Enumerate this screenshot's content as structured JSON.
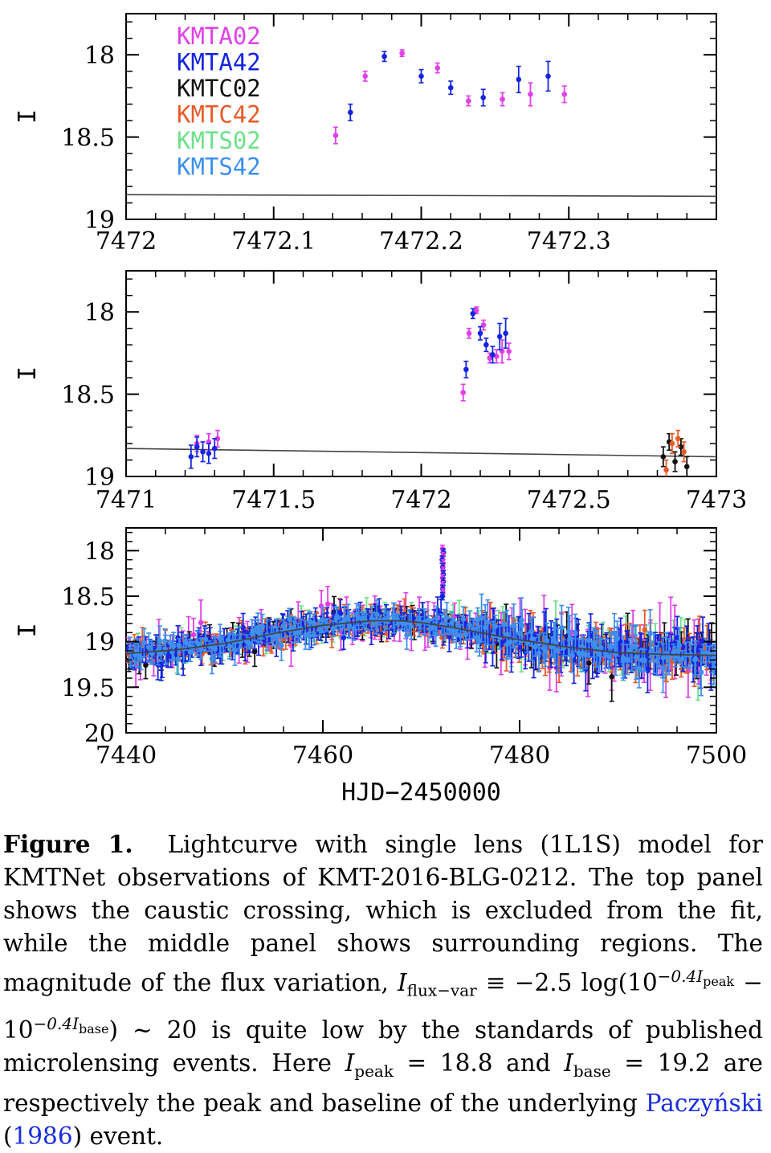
{
  "colors": {
    "KMTA02": "#e040e8",
    "KMTA42": "#1424e0",
    "KMTC02": "#111111",
    "KMTC42": "#e85a28",
    "KMTS02": "#6ee08a",
    "KMTS42": "#3d8ff0",
    "model": "#444444"
  },
  "chart_data": [
    {
      "type": "scatter",
      "panel": "top",
      "xlim": [
        7472,
        7472.4
      ],
      "ylim": [
        19,
        17.75
      ],
      "xticks": [
        "7472",
        "7472.1",
        "7472.2",
        "7472.3"
      ],
      "yticks": [
        "18",
        "18.5",
        "19"
      ],
      "ylabel": "I",
      "legend": [
        "KMTA02",
        "KMTA42",
        "KMTC02",
        "KMTC42",
        "KMTS02",
        "KMTS42"
      ],
      "legend_position": "top-left",
      "model_line": {
        "x": [
          7472.0,
          7472.4
        ],
        "y": [
          18.85,
          18.86
        ]
      },
      "series": [
        {
          "name": "KMTA02",
          "x": [
            7472.142,
            7472.162,
            7472.187,
            7472.211,
            7472.232,
            7472.255,
            7472.274,
            7472.297
          ],
          "y": [
            18.49,
            18.13,
            17.99,
            18.08,
            18.28,
            18.27,
            18.24,
            18.24
          ],
          "err": [
            0.05,
            0.03,
            0.02,
            0.03,
            0.03,
            0.04,
            0.07,
            0.05
          ]
        },
        {
          "name": "KMTA42",
          "x": [
            7472.152,
            7472.175,
            7472.2,
            7472.22,
            7472.242,
            7472.266,
            7472.286
          ],
          "y": [
            18.35,
            18.01,
            18.13,
            18.2,
            18.26,
            18.15,
            18.13
          ],
          "err": [
            0.05,
            0.03,
            0.04,
            0.04,
            0.05,
            0.08,
            0.09
          ]
        }
      ]
    },
    {
      "type": "scatter",
      "panel": "middle",
      "xlim": [
        7471,
        7473
      ],
      "ylim": [
        19,
        17.75
      ],
      "xticks": [
        "7471",
        "7471.5",
        "7472",
        "7472.5",
        "7473"
      ],
      "yticks": [
        "18",
        "18.5",
        "19"
      ],
      "ylabel": "I",
      "model_line": {
        "x": [
          7471.0,
          7473.0
        ],
        "y": [
          18.83,
          18.88
        ]
      },
      "series": [
        {
          "name": "KMTA02",
          "x": [
            7471.24,
            7471.28,
            7471.31,
            7472.142,
            7472.162,
            7472.187,
            7472.211,
            7472.232,
            7472.255,
            7472.274,
            7472.297
          ],
          "y": [
            18.8,
            18.79,
            18.77,
            18.49,
            18.13,
            17.99,
            18.08,
            18.28,
            18.27,
            18.24,
            18.24
          ],
          "err": [
            0.05,
            0.05,
            0.05,
            0.05,
            0.03,
            0.02,
            0.03,
            0.03,
            0.04,
            0.07,
            0.05
          ]
        },
        {
          "name": "KMTA42",
          "x": [
            7471.22,
            7471.26,
            7471.3,
            7472.152,
            7472.175,
            7472.2,
            7472.22,
            7472.242,
            7472.266,
            7472.286
          ],
          "y": [
            18.88,
            18.85,
            18.83,
            18.35,
            18.01,
            18.13,
            18.2,
            18.26,
            18.15,
            18.13
          ],
          "err": [
            0.07,
            0.06,
            0.06,
            0.05,
            0.03,
            0.04,
            0.04,
            0.05,
            0.08,
            0.09
          ]
        },
        {
          "name": "KMTA42",
          "x": [
            7471.24,
            7471.28
          ],
          "y": [
            18.82,
            18.86
          ],
          "err": [
            0.06,
            0.06
          ]
        },
        {
          "name": "KMTC02",
          "x": [
            7472.82,
            7472.84,
            7472.86,
            7472.88,
            7472.9
          ],
          "y": [
            18.88,
            18.79,
            18.91,
            18.82,
            18.94
          ],
          "err": [
            0.06,
            0.05,
            0.06,
            0.05,
            0.06
          ]
        },
        {
          "name": "KMTC42",
          "x": [
            7472.83,
            7472.85,
            7472.87,
            7472.89
          ],
          "y": [
            18.96,
            18.8,
            18.77,
            18.85
          ],
          "err": [
            0.06,
            0.06,
            0.05,
            0.06
          ]
        }
      ]
    },
    {
      "type": "scatter",
      "panel": "bottom",
      "xlim": [
        7440,
        7500
      ],
      "ylim": [
        20,
        17.75
      ],
      "xticks": [
        "7440",
        "7460",
        "7480",
        "7500"
      ],
      "yticks": [
        "18",
        "18.5",
        "19",
        "19.5",
        "20"
      ],
      "ylabel": "I",
      "xlabel": "HJD−2450000",
      "model_curve": {
        "x": [
          7440,
          7445,
          7450,
          7455,
          7460,
          7465,
          7468,
          7470,
          7473,
          7476,
          7480,
          7485,
          7490,
          7495,
          7500
        ],
        "y": [
          19.13,
          19.09,
          19.02,
          18.91,
          18.82,
          18.77,
          18.77,
          18.79,
          18.84,
          18.9,
          18.98,
          19.06,
          19.12,
          19.14,
          19.15
        ]
      },
      "caustic_spike": {
        "x": 7472.2,
        "y_range": [
          17.98,
          18.5
        ]
      }
    }
  ],
  "caption": {
    "label": "Figure 1.",
    "text1": "Lightcurve with single lens (1L1S) model for KMTNet observations of KMT-2016-BLG-0212. The top panel shows the caustic crossing, which is excluded from the fit, while the middle panel shows surrounding regions. The magnitude of the flux variation,",
    "math1": "I",
    "sub1": "flux−var",
    "text2": "≡ −2.5 log(10",
    "sup1": "−0.4I",
    "sup1sub": "peak",
    "text3": "− 10",
    "sup2": "−0.4I",
    "sup2sub": "base",
    "text4": ") ∼ 20 is quite low by the standards of published microlensing events. Here",
    "math2": "I",
    "sub2": "peak",
    "text5": "= 18.8 and",
    "math3": "I",
    "sub3": "base",
    "text6": "= 19.2 are respectively the peak and baseline of the underlying",
    "cite_author": "Paczyński",
    "cite_year": "1986",
    "text7": "event."
  }
}
